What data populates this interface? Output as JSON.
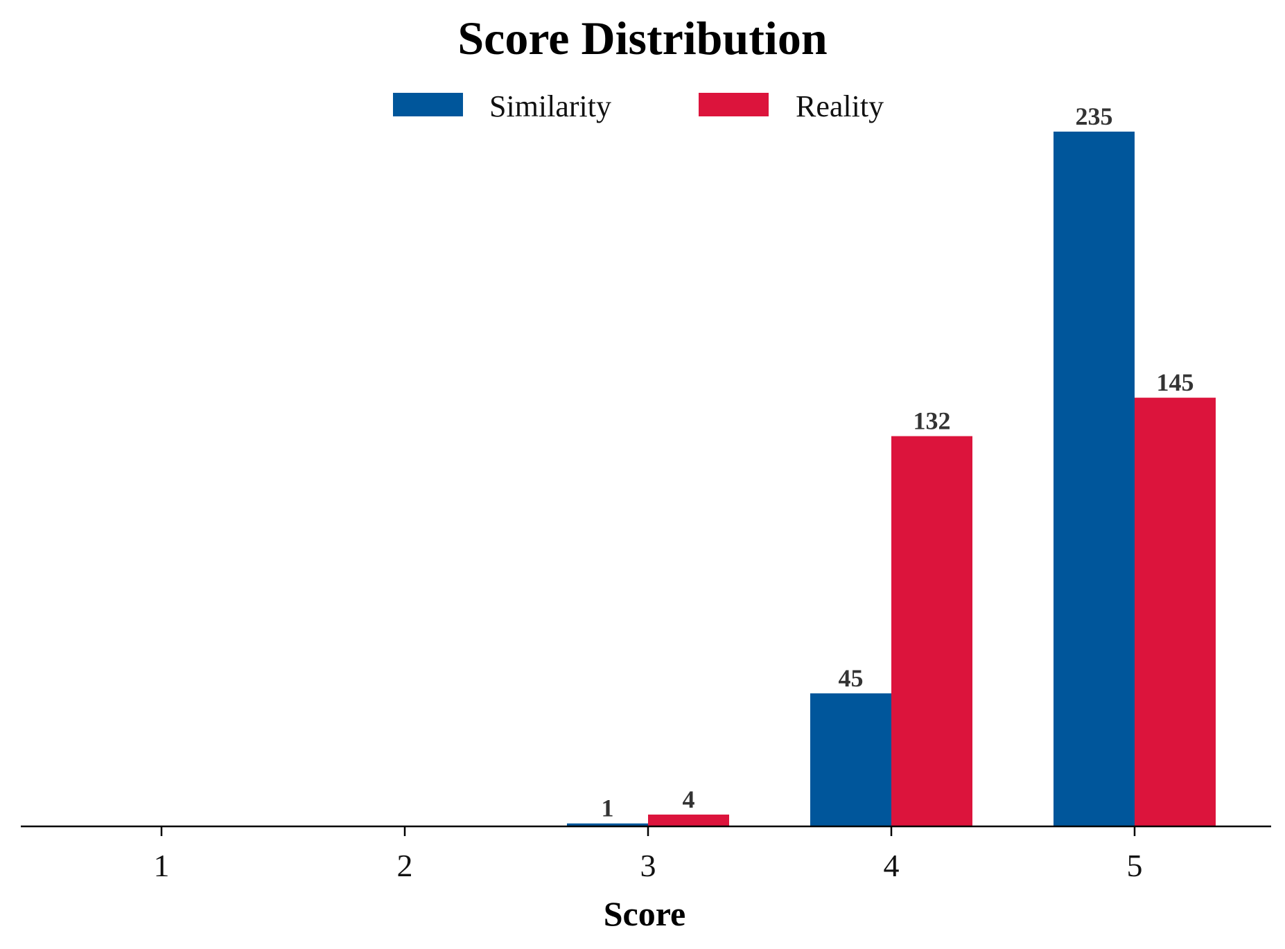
{
  "chart_data": {
    "type": "bar",
    "title": "Score Distribution",
    "xlabel": "Score",
    "ylabel": "",
    "categories": [
      "1",
      "2",
      "3",
      "4",
      "5"
    ],
    "series": [
      {
        "name": "Similarity",
        "color": "#00569b",
        "values": [
          0,
          0,
          1,
          45,
          235
        ]
      },
      {
        "name": "Reality",
        "color": "#dc143c",
        "values": [
          0,
          0,
          4,
          132,
          145
        ]
      }
    ],
    "data_labels": {
      "Similarity": [
        "",
        "",
        "1",
        "45",
        "235"
      ],
      "Reality": [
        "",
        "",
        "4",
        "132",
        "145"
      ]
    },
    "ylim": [
      0,
      235
    ],
    "grid": false,
    "legend_position": "top-center"
  }
}
